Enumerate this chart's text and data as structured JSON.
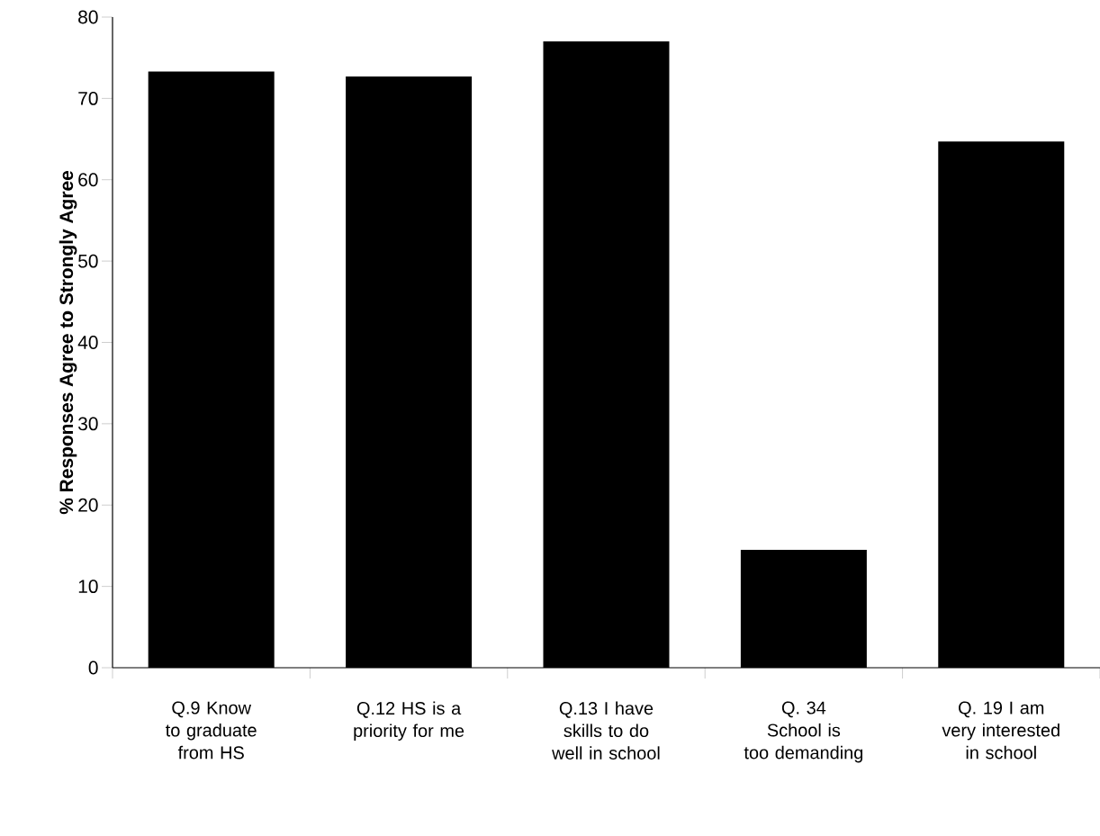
{
  "chart_data": {
    "type": "bar",
    "ylabel": "% Responses Agree to Strongly Agree",
    "categories": [
      "Q.9   Know to graduate from HS",
      "Q.12 HS is a priority for me",
      "Q.13 I have skills to do well in school",
      "Q. 34 School is too demanding",
      "Q. 19 I am very interested in school"
    ],
    "values": [
      73.3,
      72.7,
      77,
      14.5,
      64.7
    ],
    "color": "#000000",
    "ylim": [
      0,
      80
    ],
    "yticks": [
      0,
      10,
      20,
      30,
      40,
      50,
      60,
      70,
      80
    ],
    "grid": false
  }
}
